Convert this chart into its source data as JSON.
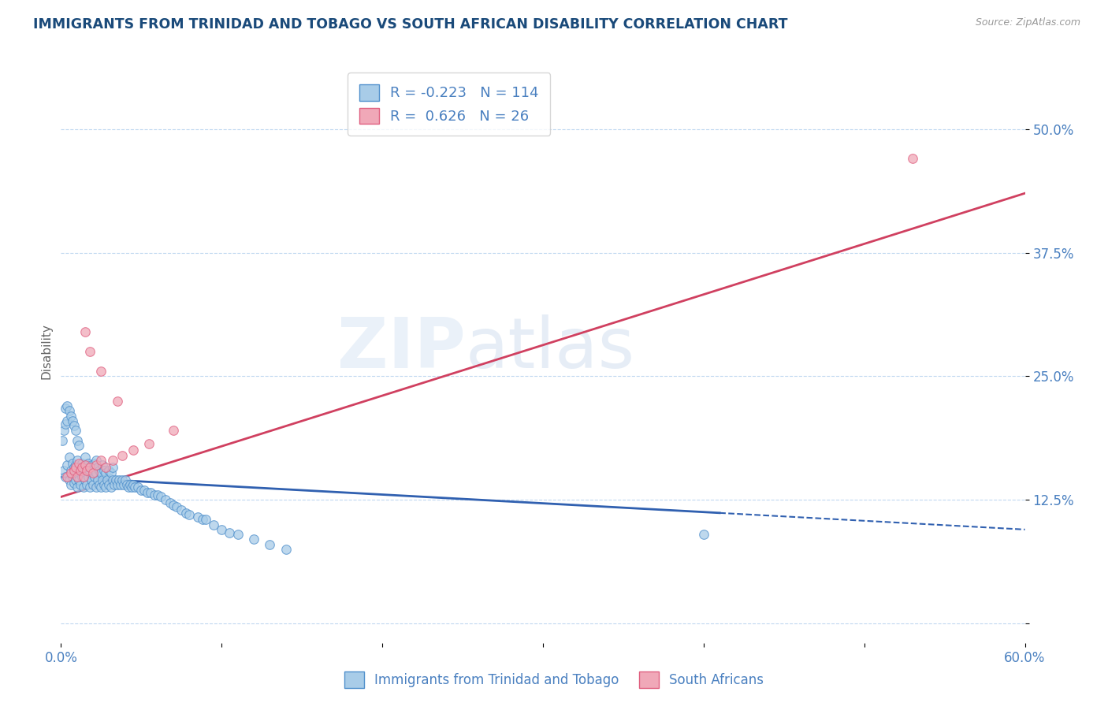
{
  "title": "IMMIGRANTS FROM TRINIDAD AND TOBAGO VS SOUTH AFRICAN DISABILITY CORRELATION CHART",
  "source": "Source: ZipAtlas.com",
  "ylabel": "Disability",
  "xlim": [
    0.0,
    0.6
  ],
  "ylim": [
    -0.02,
    0.57
  ],
  "ytick_positions": [
    0.0,
    0.125,
    0.25,
    0.375,
    0.5
  ],
  "ytick_labels": [
    "",
    "12.5%",
    "25.0%",
    "37.5%",
    "50.0%"
  ],
  "watermark_text": "ZIP",
  "watermark_text2": "atlas",
  "blue_R": -0.223,
  "blue_N": 114,
  "pink_R": 0.626,
  "pink_N": 26,
  "blue_color": "#a8cce8",
  "pink_color": "#f0a8b8",
  "blue_edge_color": "#5090cc",
  "pink_edge_color": "#e06080",
  "blue_line_color": "#3060b0",
  "pink_line_color": "#d04060",
  "legend_label_blue": "Immigrants from Trinidad and Tobago",
  "legend_label_pink": "South Africans",
  "title_color": "#1a4a7a",
  "axis_color": "#4a80c0",
  "grid_color": "#c0d8f0",
  "blue_trend_start_y": 0.148,
  "blue_trend_end_y": 0.095,
  "blue_trend_solid_end_x": 0.41,
  "pink_trend_start_y": 0.128,
  "pink_trend_end_y": 0.435,
  "blue_scatter_x": [
    0.002,
    0.003,
    0.004,
    0.005,
    0.005,
    0.006,
    0.006,
    0.007,
    0.007,
    0.008,
    0.008,
    0.009,
    0.009,
    0.01,
    0.01,
    0.01,
    0.011,
    0.011,
    0.012,
    0.012,
    0.013,
    0.013,
    0.014,
    0.014,
    0.015,
    0.015,
    0.015,
    0.016,
    0.016,
    0.017,
    0.017,
    0.018,
    0.018,
    0.019,
    0.019,
    0.02,
    0.02,
    0.021,
    0.021,
    0.022,
    0.022,
    0.022,
    0.023,
    0.023,
    0.024,
    0.024,
    0.025,
    0.025,
    0.026,
    0.026,
    0.027,
    0.027,
    0.028,
    0.028,
    0.029,
    0.03,
    0.03,
    0.031,
    0.031,
    0.032,
    0.032,
    0.033,
    0.034,
    0.035,
    0.036,
    0.037,
    0.038,
    0.039,
    0.04,
    0.041,
    0.042,
    0.043,
    0.044,
    0.045,
    0.046,
    0.048,
    0.05,
    0.052,
    0.054,
    0.056,
    0.058,
    0.06,
    0.062,
    0.065,
    0.068,
    0.07,
    0.072,
    0.075,
    0.078,
    0.08,
    0.085,
    0.088,
    0.09,
    0.095,
    0.1,
    0.105,
    0.11,
    0.12,
    0.13,
    0.14,
    0.001,
    0.002,
    0.003,
    0.003,
    0.004,
    0.004,
    0.005,
    0.006,
    0.007,
    0.008,
    0.009,
    0.01,
    0.011,
    0.4
  ],
  "blue_scatter_y": [
    0.155,
    0.148,
    0.16,
    0.145,
    0.168,
    0.14,
    0.155,
    0.148,
    0.162,
    0.142,
    0.158,
    0.145,
    0.16,
    0.138,
    0.152,
    0.165,
    0.145,
    0.158,
    0.14,
    0.155,
    0.148,
    0.162,
    0.138,
    0.152,
    0.145,
    0.158,
    0.168,
    0.14,
    0.155,
    0.148,
    0.162,
    0.138,
    0.152,
    0.145,
    0.16,
    0.14,
    0.155,
    0.148,
    0.162,
    0.138,
    0.152,
    0.165,
    0.145,
    0.158,
    0.14,
    0.155,
    0.138,
    0.152,
    0.145,
    0.16,
    0.14,
    0.155,
    0.138,
    0.152,
    0.145,
    0.14,
    0.155,
    0.138,
    0.152,
    0.145,
    0.158,
    0.14,
    0.145,
    0.14,
    0.145,
    0.14,
    0.145,
    0.14,
    0.145,
    0.14,
    0.138,
    0.14,
    0.138,
    0.14,
    0.138,
    0.138,
    0.135,
    0.135,
    0.132,
    0.132,
    0.13,
    0.13,
    0.128,
    0.125,
    0.122,
    0.12,
    0.118,
    0.115,
    0.112,
    0.11,
    0.108,
    0.105,
    0.105,
    0.1,
    0.095,
    0.092,
    0.09,
    0.085,
    0.08,
    0.075,
    0.185,
    0.195,
    0.202,
    0.218,
    0.205,
    0.22,
    0.215,
    0.21,
    0.205,
    0.2,
    0.195,
    0.185,
    0.18,
    0.09
  ],
  "pink_scatter_x": [
    0.004,
    0.006,
    0.008,
    0.009,
    0.01,
    0.011,
    0.012,
    0.013,
    0.014,
    0.015,
    0.016,
    0.018,
    0.02,
    0.022,
    0.025,
    0.028,
    0.032,
    0.038,
    0.045,
    0.055,
    0.07,
    0.015,
    0.018,
    0.025,
    0.035,
    0.53
  ],
  "pink_scatter_y": [
    0.148,
    0.152,
    0.155,
    0.158,
    0.148,
    0.162,
    0.155,
    0.158,
    0.148,
    0.16,
    0.155,
    0.158,
    0.152,
    0.16,
    0.165,
    0.158,
    0.165,
    0.17,
    0.175,
    0.182,
    0.195,
    0.295,
    0.275,
    0.255,
    0.225,
    0.47
  ]
}
